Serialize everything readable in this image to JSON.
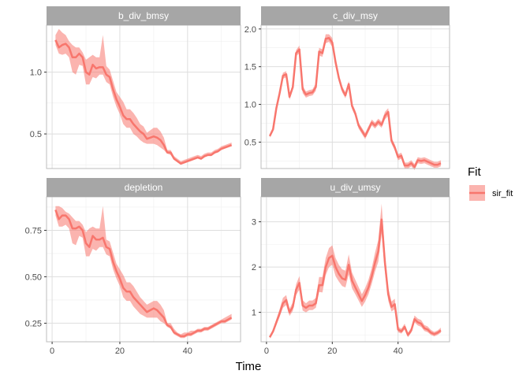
{
  "colors": {
    "fit": "#F8766D",
    "band": "#F8766D",
    "strip": "#A6A6A6",
    "grid_major": "#DEDEDE",
    "grid_minor": "#EFEFEF",
    "panel_border": "#BDBDBD"
  },
  "chart_data": {
    "type": "line",
    "xlabel": "Time",
    "legend": {
      "title": "Fit",
      "entries": [
        "sir_fit"
      ],
      "position": "right"
    },
    "x_ticks": [
      0,
      20,
      40
    ],
    "x_tick_labels": [
      "0",
      "20",
      "40"
    ],
    "panels": [
      {
        "name": "b_div_bmsy",
        "series": "sir_fit",
        "ylim": [
          0.22,
          1.38
        ],
        "y_ticks": [
          0.5,
          1.0
        ],
        "y_tick_labels": [
          "0.5",
          "1.0"
        ],
        "x": [
          1,
          2,
          3,
          4,
          5,
          6,
          7,
          8,
          9,
          10,
          11,
          12,
          13,
          14,
          15,
          16,
          17,
          18,
          19,
          20,
          21,
          22,
          23,
          24,
          25,
          26,
          27,
          28,
          29,
          30,
          31,
          32,
          33,
          34,
          35,
          36,
          37,
          38,
          39,
          40,
          41,
          42,
          43,
          44,
          45,
          46,
          47,
          48,
          49,
          50,
          51,
          52,
          53
        ],
        "values": [
          1.26,
          1.2,
          1.22,
          1.23,
          1.2,
          1.12,
          1.12,
          1.15,
          1.12,
          1.0,
          0.98,
          1.06,
          1.03,
          1.04,
          1.04,
          0.98,
          0.96,
          0.86,
          0.78,
          0.72,
          0.65,
          0.62,
          0.62,
          0.58,
          0.55,
          0.52,
          0.5,
          0.46,
          0.47,
          0.48,
          0.47,
          0.45,
          0.41,
          0.35,
          0.35,
          0.3,
          0.28,
          0.26,
          0.27,
          0.28,
          0.29,
          0.3,
          0.31,
          0.3,
          0.32,
          0.33,
          0.33,
          0.35,
          0.36,
          0.38,
          0.39,
          0.4,
          0.41
        ],
        "upper": [
          1.3,
          1.35,
          1.32,
          1.3,
          1.25,
          1.22,
          1.2,
          1.2,
          1.16,
          1.1,
          1.12,
          1.14,
          1.12,
          1.12,
          1.3,
          1.05,
          1.02,
          0.93,
          0.84,
          0.8,
          0.76,
          0.7,
          0.7,
          0.67,
          0.63,
          0.58,
          0.56,
          0.51,
          0.53,
          0.55,
          0.55,
          0.52,
          0.47,
          0.37,
          0.37,
          0.32,
          0.3,
          0.28,
          0.29,
          0.3,
          0.31,
          0.32,
          0.33,
          0.32,
          0.34,
          0.35,
          0.35,
          0.37,
          0.38,
          0.4,
          0.41,
          0.42,
          0.43
        ],
        "lower": [
          1.22,
          1.15,
          1.14,
          1.15,
          1.12,
          1.0,
          0.98,
          1.06,
          1.05,
          0.9,
          0.9,
          0.96,
          0.95,
          0.98,
          0.98,
          0.92,
          0.9,
          0.8,
          0.72,
          0.66,
          0.58,
          0.55,
          0.55,
          0.5,
          0.48,
          0.45,
          0.43,
          0.42,
          0.42,
          0.42,
          0.41,
          0.39,
          0.37,
          0.34,
          0.33,
          0.29,
          0.27,
          0.25,
          0.26,
          0.27,
          0.28,
          0.29,
          0.3,
          0.29,
          0.31,
          0.32,
          0.32,
          0.34,
          0.35,
          0.37,
          0.38,
          0.39,
          0.4
        ]
      },
      {
        "name": "c_div_msy",
        "series": "sir_fit",
        "ylim": [
          0.15,
          2.05
        ],
        "y_ticks": [
          0.5,
          1.0,
          1.5,
          2.0
        ],
        "y_tick_labels": [
          "0.5",
          "1.0",
          "1.5",
          "2.0"
        ],
        "x": [
          1,
          2,
          3,
          4,
          5,
          6,
          7,
          8,
          9,
          10,
          11,
          12,
          13,
          14,
          15,
          16,
          17,
          18,
          19,
          20,
          21,
          22,
          23,
          24,
          25,
          26,
          27,
          28,
          29,
          30,
          31,
          32,
          33,
          34,
          35,
          36,
          37,
          38,
          39,
          40,
          41,
          42,
          43,
          44,
          45,
          46,
          47,
          48,
          49,
          50,
          51,
          52,
          53
        ],
        "values": [
          0.58,
          0.67,
          0.95,
          1.15,
          1.38,
          1.4,
          1.1,
          1.23,
          1.68,
          1.73,
          1.2,
          1.13,
          1.15,
          1.16,
          1.23,
          1.7,
          1.68,
          1.87,
          1.88,
          1.82,
          1.56,
          1.35,
          1.2,
          1.12,
          1.27,
          0.98,
          0.88,
          0.72,
          0.65,
          0.58,
          0.67,
          0.76,
          0.72,
          0.77,
          0.73,
          0.85,
          0.9,
          0.52,
          0.43,
          0.3,
          0.32,
          0.19,
          0.19,
          0.22,
          0.17,
          0.26,
          0.25,
          0.26,
          0.24,
          0.22,
          0.2,
          0.2,
          0.22
        ],
        "upper": [
          0.6,
          0.7,
          0.98,
          1.18,
          1.42,
          1.44,
          1.14,
          1.27,
          1.72,
          1.78,
          1.25,
          1.17,
          1.19,
          1.2,
          1.28,
          1.75,
          1.73,
          1.93,
          1.93,
          1.88,
          1.61,
          1.39,
          1.24,
          1.16,
          1.31,
          1.02,
          0.92,
          0.76,
          0.69,
          0.62,
          0.71,
          0.8,
          0.76,
          0.81,
          0.77,
          0.9,
          0.95,
          0.56,
          0.47,
          0.34,
          0.36,
          0.23,
          0.23,
          0.26,
          0.21,
          0.3,
          0.29,
          0.3,
          0.28,
          0.26,
          0.24,
          0.24,
          0.26
        ],
        "lower": [
          0.56,
          0.64,
          0.92,
          1.12,
          1.34,
          1.36,
          1.06,
          1.19,
          1.64,
          1.68,
          1.15,
          1.09,
          1.11,
          1.12,
          1.18,
          1.65,
          1.63,
          1.81,
          1.83,
          1.76,
          1.51,
          1.31,
          1.16,
          1.08,
          1.23,
          0.94,
          0.84,
          0.68,
          0.61,
          0.54,
          0.63,
          0.72,
          0.68,
          0.73,
          0.69,
          0.8,
          0.85,
          0.48,
          0.39,
          0.26,
          0.28,
          0.15,
          0.15,
          0.18,
          0.13,
          0.22,
          0.21,
          0.22,
          0.2,
          0.18,
          0.16,
          0.16,
          0.18
        ]
      },
      {
        "name": "depletion",
        "series": "sir_fit",
        "ylim": [
          0.15,
          0.93
        ],
        "y_ticks": [
          0.25,
          0.5,
          0.75
        ],
        "y_tick_labels": [
          "0.25",
          "0.50",
          "0.75"
        ],
        "x": [
          1,
          2,
          3,
          4,
          5,
          6,
          7,
          8,
          9,
          10,
          11,
          12,
          13,
          14,
          15,
          16,
          17,
          18,
          19,
          20,
          21,
          22,
          23,
          24,
          25,
          26,
          27,
          28,
          29,
          30,
          31,
          32,
          33,
          34,
          35,
          36,
          37,
          38,
          39,
          40,
          41,
          42,
          43,
          44,
          45,
          46,
          47,
          48,
          49,
          50,
          51,
          52,
          53
        ],
        "values": [
          0.86,
          0.81,
          0.83,
          0.83,
          0.81,
          0.76,
          0.76,
          0.77,
          0.75,
          0.68,
          0.66,
          0.72,
          0.7,
          0.7,
          0.71,
          0.66,
          0.65,
          0.58,
          0.53,
          0.49,
          0.44,
          0.42,
          0.42,
          0.39,
          0.37,
          0.35,
          0.33,
          0.31,
          0.32,
          0.33,
          0.32,
          0.3,
          0.28,
          0.24,
          0.23,
          0.2,
          0.19,
          0.18,
          0.18,
          0.19,
          0.19,
          0.2,
          0.21,
          0.21,
          0.22,
          0.22,
          0.23,
          0.24,
          0.25,
          0.26,
          0.26,
          0.27,
          0.28
        ],
        "upper": [
          0.88,
          0.88,
          0.87,
          0.85,
          0.84,
          0.82,
          0.8,
          0.8,
          0.78,
          0.74,
          0.76,
          0.77,
          0.76,
          0.76,
          0.88,
          0.7,
          0.69,
          0.63,
          0.57,
          0.54,
          0.51,
          0.47,
          0.47,
          0.45,
          0.42,
          0.39,
          0.37,
          0.35,
          0.36,
          0.37,
          0.37,
          0.35,
          0.32,
          0.25,
          0.25,
          0.22,
          0.2,
          0.19,
          0.2,
          0.2,
          0.21,
          0.21,
          0.22,
          0.22,
          0.23,
          0.23,
          0.24,
          0.25,
          0.26,
          0.27,
          0.28,
          0.29,
          0.3
        ],
        "lower": [
          0.83,
          0.77,
          0.77,
          0.78,
          0.76,
          0.68,
          0.67,
          0.72,
          0.71,
          0.61,
          0.61,
          0.65,
          0.64,
          0.66,
          0.66,
          0.62,
          0.61,
          0.54,
          0.49,
          0.45,
          0.39,
          0.37,
          0.37,
          0.34,
          0.32,
          0.3,
          0.29,
          0.28,
          0.28,
          0.28,
          0.28,
          0.26,
          0.25,
          0.23,
          0.22,
          0.19,
          0.18,
          0.17,
          0.17,
          0.18,
          0.18,
          0.19,
          0.2,
          0.2,
          0.21,
          0.21,
          0.22,
          0.23,
          0.24,
          0.25,
          0.25,
          0.26,
          0.27
        ]
      },
      {
        "name": "u_div_umsy",
        "series": "sir_fit",
        "ylim": [
          0.35,
          3.55
        ],
        "y_ticks": [
          1,
          2,
          3
        ],
        "y_tick_labels": [
          "1",
          "2",
          "3"
        ],
        "x": [
          1,
          2,
          3,
          4,
          5,
          6,
          7,
          8,
          9,
          10,
          11,
          12,
          13,
          14,
          15,
          16,
          17,
          18,
          19,
          20,
          21,
          22,
          23,
          24,
          25,
          26,
          27,
          28,
          29,
          30,
          31,
          32,
          33,
          34,
          35,
          36,
          37,
          38,
          39,
          40,
          41,
          42,
          43,
          44,
          45,
          46,
          47,
          48,
          49,
          50,
          51,
          52,
          53
        ],
        "values": [
          0.45,
          0.58,
          0.78,
          0.98,
          1.2,
          1.27,
          1.0,
          1.12,
          1.5,
          1.65,
          1.15,
          1.1,
          1.15,
          1.15,
          1.2,
          1.6,
          1.6,
          2.0,
          2.2,
          2.25,
          2.0,
          1.85,
          1.75,
          1.72,
          2.05,
          1.7,
          1.55,
          1.4,
          1.25,
          1.38,
          1.55,
          1.8,
          2.1,
          2.35,
          3.05,
          2.1,
          1.4,
          1.12,
          1.18,
          0.62,
          0.58,
          0.68,
          0.5,
          0.6,
          0.85,
          0.78,
          0.75,
          0.65,
          0.62,
          0.55,
          0.52,
          0.55,
          0.6
        ],
        "upper": [
          0.48,
          0.63,
          0.85,
          1.07,
          1.32,
          1.38,
          1.08,
          1.22,
          1.62,
          1.8,
          1.27,
          1.2,
          1.26,
          1.26,
          1.32,
          1.78,
          1.78,
          2.2,
          2.42,
          2.48,
          2.2,
          2.05,
          1.95,
          1.92,
          2.28,
          1.88,
          1.72,
          1.56,
          1.4,
          1.54,
          1.72,
          1.98,
          2.32,
          2.6,
          3.4,
          2.32,
          1.55,
          1.24,
          1.3,
          0.68,
          0.64,
          0.75,
          0.55,
          0.66,
          0.93,
          0.86,
          0.83,
          0.72,
          0.69,
          0.61,
          0.57,
          0.6,
          0.66
        ],
        "lower": [
          0.42,
          0.54,
          0.72,
          0.9,
          1.1,
          1.16,
          0.92,
          1.03,
          1.38,
          1.5,
          1.04,
          1.0,
          1.05,
          1.05,
          1.1,
          1.45,
          1.44,
          1.82,
          2.0,
          2.05,
          1.8,
          1.68,
          1.58,
          1.55,
          1.84,
          1.53,
          1.4,
          1.26,
          1.12,
          1.24,
          1.4,
          1.63,
          1.9,
          2.12,
          2.74,
          1.9,
          1.26,
          1.02,
          1.07,
          0.56,
          0.53,
          0.62,
          0.45,
          0.55,
          0.78,
          0.71,
          0.68,
          0.59,
          0.56,
          0.5,
          0.47,
          0.5,
          0.55
        ]
      }
    ]
  }
}
